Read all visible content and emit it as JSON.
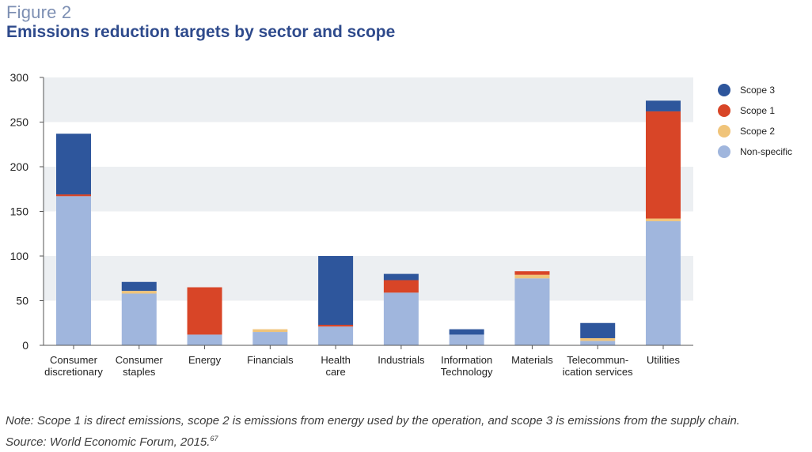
{
  "figure_label": "Figure 2",
  "title": "Emissions reduction targets by sector and scope",
  "note": "Note: Scope 1 is direct emissions, scope 2 is emissions from energy used by the operation, and scope 3 is emissions from the supply chain.",
  "source": "Source: World Economic Forum, 2015.",
  "source_ref": "67",
  "colors": {
    "band": "#eceff2",
    "axis": "#555555",
    "non_specific": "#a0b6dd",
    "scope2": "#f0c47a",
    "scope1": "#d84527",
    "scope3": "#2e569c"
  },
  "chart_data": {
    "type": "bar",
    "stacked": true,
    "title": "Emissions reduction targets by sector and scope",
    "xlabel": "",
    "ylabel": "",
    "ylim": [
      0,
      300
    ],
    "yticks": [
      0,
      50,
      100,
      150,
      200,
      250,
      300
    ],
    "grid": "alternating horizontal bands",
    "legend_position": "right",
    "categories": [
      [
        "Consumer",
        "discretionary"
      ],
      [
        "Consumer",
        "staples"
      ],
      [
        "Energy"
      ],
      [
        "Financials"
      ],
      [
        "Health",
        "care"
      ],
      [
        "Industrials"
      ],
      [
        "Information",
        "Technology"
      ],
      [
        "Materials"
      ],
      [
        "Telecommun-",
        "ication services"
      ],
      [
        "Utilities"
      ]
    ],
    "series": [
      {
        "name": "Non-specific",
        "color": "#a0b6dd",
        "values": [
          167,
          58,
          12,
          15,
          21,
          59,
          12,
          75,
          5,
          139
        ]
      },
      {
        "name": "Scope 2",
        "color": "#f0c47a",
        "values": [
          0,
          3,
          0,
          3,
          0,
          0,
          0,
          4,
          3,
          3
        ]
      },
      {
        "name": "Scope 1",
        "color": "#d84527",
        "values": [
          2,
          0,
          53,
          0,
          2,
          14,
          0,
          4,
          0,
          120
        ]
      },
      {
        "name": "Scope 3",
        "color": "#2e569c",
        "values": [
          68,
          10,
          0,
          0,
          77,
          7,
          6,
          0,
          17,
          12
        ]
      }
    ],
    "legend_order": [
      "Scope 3",
      "Scope 1",
      "Scope 2",
      "Non-specific"
    ]
  }
}
